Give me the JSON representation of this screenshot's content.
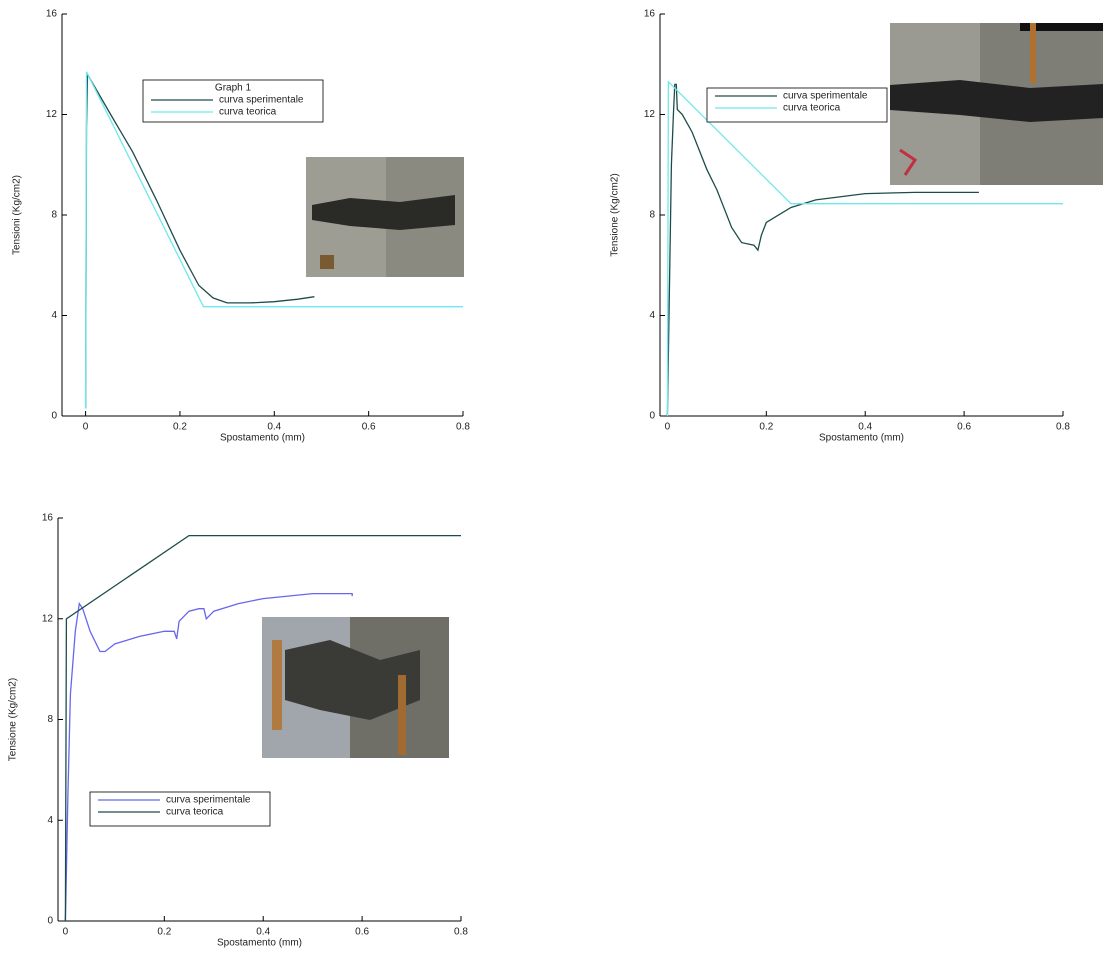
{
  "chart_data": [
    {
      "type": "line",
      "legend_title": "Graph 1",
      "xlabel": "Spostamento (mm)",
      "ylabel": "Tensioni (Kg/cm2)",
      "xlim": [
        -0.05,
        0.8
      ],
      "ylim": [
        0,
        16
      ],
      "xticks": [
        0,
        0.2,
        0.4,
        0.6,
        0.8
      ],
      "yticks": [
        0,
        4,
        8,
        12,
        16
      ],
      "legend": "upper center",
      "series": [
        {
          "name": "curva sperimentale",
          "color": "#1d4d4a",
          "x": [
            0,
            0.002,
            0.004,
            0.05,
            0.1,
            0.15,
            0.2,
            0.24,
            0.27,
            0.3,
            0.35,
            0.4,
            0.45,
            0.485
          ],
          "values": [
            0.3,
            11.5,
            13.6,
            12.1,
            10.5,
            8.6,
            6.6,
            5.2,
            4.7,
            4.5,
            4.5,
            4.55,
            4.65,
            4.75
          ]
        },
        {
          "name": "curva teorica",
          "color": "#6ee8ee",
          "x": [
            0,
            0.002,
            0.25,
            0.8
          ],
          "values": [
            0.3,
            13.7,
            4.35,
            4.35
          ]
        }
      ]
    },
    {
      "type": "line",
      "xlabel": "Spostamento (mm)",
      "ylabel": "Tensione (Kg/cm2)",
      "xlim": [
        -0.015,
        0.8
      ],
      "ylim": [
        0,
        16
      ],
      "xticks": [
        0,
        0.2,
        0.4,
        0.6,
        0.8
      ],
      "yticks": [
        0,
        4,
        8,
        12,
        16
      ],
      "legend": "upper left",
      "series": [
        {
          "name": "curva sperimentale",
          "color": "#1d4d4a",
          "x": [
            0,
            0.008,
            0.012,
            0.015,
            0.018,
            0.02,
            0.03,
            0.05,
            0.08,
            0.1,
            0.13,
            0.15,
            0.175,
            0.183,
            0.19,
            0.2,
            0.25,
            0.3,
            0.4,
            0.5,
            0.63
          ],
          "values": [
            0,
            10,
            12,
            13.2,
            13.2,
            12.2,
            12,
            11.3,
            9.8,
            9,
            7.5,
            6.9,
            6.8,
            6.6,
            7.2,
            7.7,
            8.3,
            8.6,
            8.85,
            8.9,
            8.9
          ]
        },
        {
          "name": "curva teorica",
          "color": "#6ee8ee",
          "x": [
            0,
            0.002,
            0.25,
            0.8
          ],
          "values": [
            0,
            13.3,
            8.45,
            8.45
          ]
        }
      ]
    },
    {
      "type": "line",
      "xlabel": "Spostamento (mm)",
      "ylabel": "Tensione (Kg/cm2)",
      "xlim": [
        -0.015,
        0.8
      ],
      "ylim": [
        0,
        16
      ],
      "xticks": [
        0,
        0.2,
        0.4,
        0.6,
        0.8
      ],
      "yticks": [
        0,
        4,
        8,
        12,
        16
      ],
      "legend": "lower left",
      "series": [
        {
          "name": "curva sperimentale",
          "color": "#6666ee",
          "x": [
            0,
            0.005,
            0.01,
            0.02,
            0.028,
            0.035,
            0.05,
            0.07,
            0.08,
            0.1,
            0.15,
            0.2,
            0.22,
            0.225,
            0.23,
            0.25,
            0.27,
            0.28,
            0.285,
            0.3,
            0.35,
            0.4,
            0.45,
            0.5,
            0.58,
            0.58
          ],
          "values": [
            0,
            5,
            9,
            11.5,
            12.6,
            12.4,
            11.5,
            10.7,
            10.7,
            11,
            11.3,
            11.5,
            11.5,
            11.2,
            11.9,
            12.3,
            12.4,
            12.4,
            12,
            12.3,
            12.6,
            12.8,
            12.9,
            13,
            13,
            12.9
          ]
        },
        {
          "name": "curva teorica",
          "color": "#1d4d4a",
          "x": [
            0,
            0.002,
            0.25,
            0.8
          ],
          "values": [
            0,
            12,
            15.3,
            15.3
          ]
        }
      ]
    }
  ]
}
